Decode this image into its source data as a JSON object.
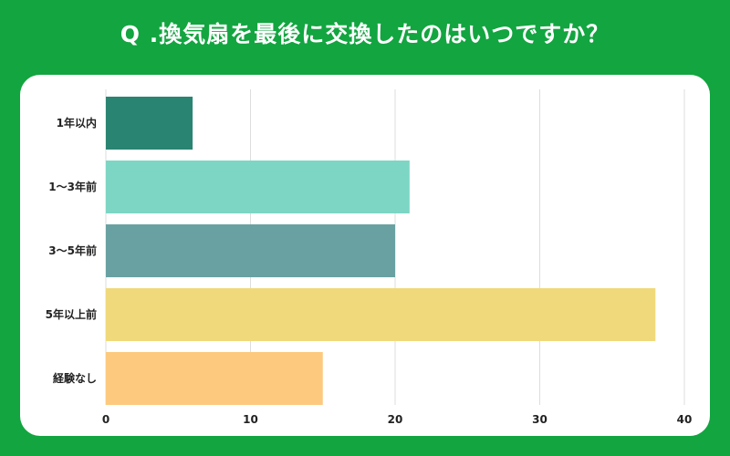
{
  "title": "Q .換気扇を最後に交換したのはいつですか？",
  "chart_data": {
    "type": "bar",
    "orientation": "horizontal",
    "title": "Q .換気扇を最後に交換したのはいつですか？",
    "categories": [
      "1年以内",
      "1〜3年前",
      "3〜5年前",
      "5年以上前",
      "経験なし"
    ],
    "values": [
      6,
      21,
      20,
      38,
      15
    ],
    "colors": [
      "#2a8472",
      "#7dd6c4",
      "#69a1a2",
      "#f0d97b",
      "#fdc97e"
    ],
    "xlim": [
      0,
      40
    ],
    "xticks": [
      0,
      10,
      20,
      30,
      40
    ],
    "xlabel": "",
    "ylabel": "",
    "grid": "vertical",
    "legend": "none"
  }
}
